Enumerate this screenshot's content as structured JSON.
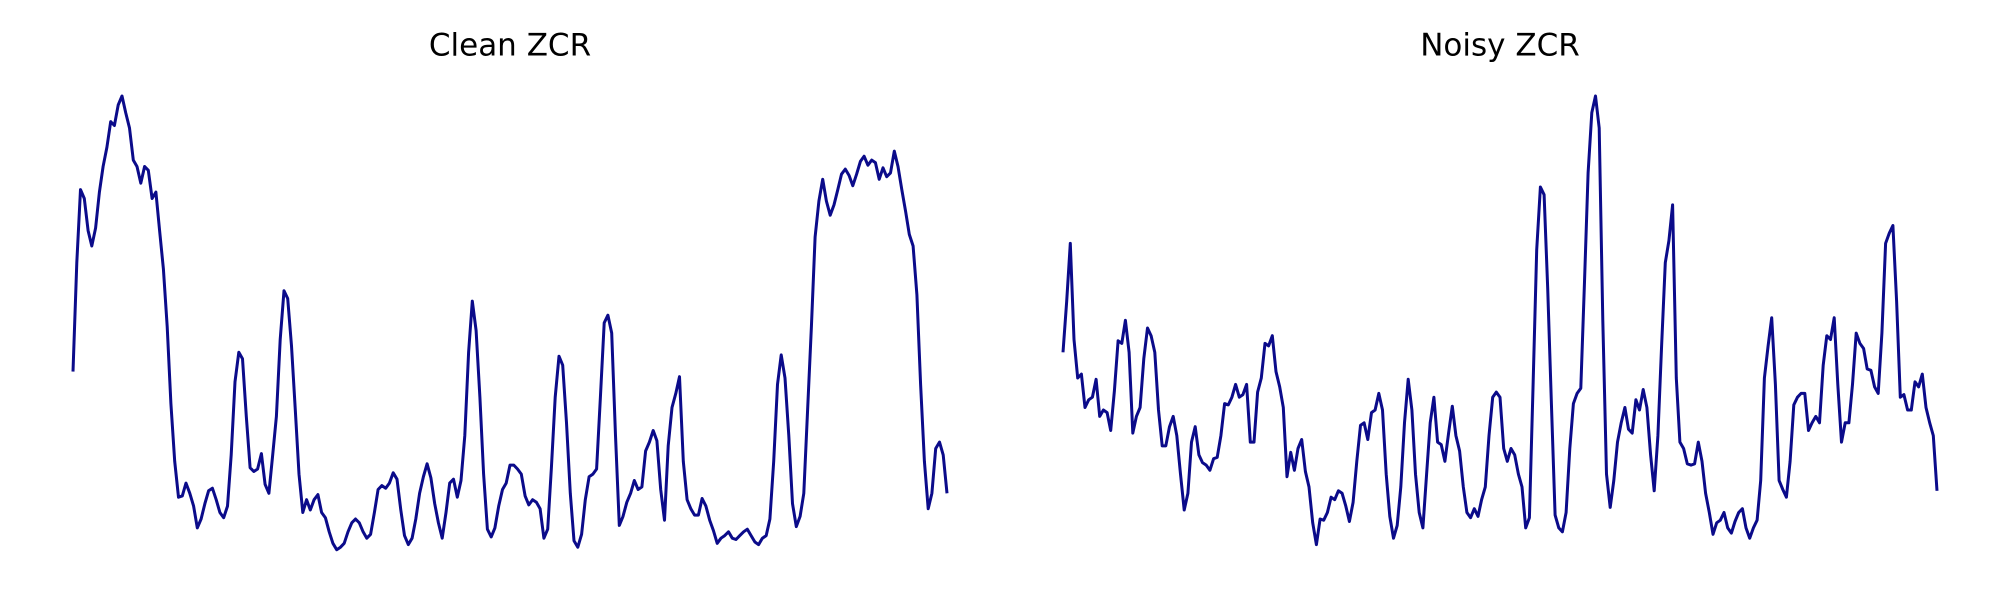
{
  "chart_data": [
    {
      "type": "line",
      "title": "Clean ZCR",
      "color": "#0b0b8a",
      "ylim": [
        0,
        355
      ],
      "values": [
        140,
        225,
        282,
        275,
        250,
        238,
        252,
        280,
        300,
        315,
        335,
        332,
        348,
        355,
        342,
        330,
        305,
        300,
        287,
        300,
        297,
        275,
        280,
        250,
        220,
        175,
        115,
        70,
        42,
        43,
        53,
        45,
        35,
        18,
        25,
        37,
        47,
        49,
        40,
        30,
        26,
        35,
        75,
        132,
        155,
        150,
        105,
        65,
        62,
        64,
        76,
        52,
        45,
        75,
        105,
        165,
        203,
        197,
        160,
        110,
        60,
        30,
        40,
        32,
        40,
        44,
        30,
        26,
        15,
        6,
        1,
        3,
        6,
        15,
        22,
        25,
        22,
        15,
        10,
        13,
        30,
        48,
        51,
        49,
        53,
        61,
        56,
        32,
        12,
        5,
        10,
        25,
        45,
        58,
        68,
        57,
        37,
        22,
        10,
        30,
        53,
        56,
        42,
        55,
        90,
        155,
        195,
        172,
        120,
        60,
        17,
        11,
        18,
        35,
        48,
        53,
        67,
        67,
        64,
        60,
        43,
        36,
        40,
        38,
        33,
        10,
        17,
        65,
        120,
        152,
        145,
        100,
        45,
        8,
        3,
        13,
        40,
        58,
        60,
        64,
        120,
        178,
        184,
        170,
        90,
        20,
        27,
        38,
        45,
        55,
        48,
        50,
        78,
        85,
        94,
        86,
        48,
        24,
        82,
        112,
        123,
        136,
        70,
        40,
        33,
        28,
        28,
        41,
        35,
        24,
        16,
        6,
        10,
        12,
        15,
        10,
        9,
        12,
        15,
        17,
        12,
        7,
        5,
        10,
        12,
        25,
        70,
        130,
        153,
        135,
        90,
        37,
        19,
        27,
        45,
        110,
        175,
        245,
        273,
        290,
        273,
        262,
        270,
        282,
        294,
        298,
        293,
        285,
        294,
        304,
        308,
        301,
        305,
        303,
        290,
        299,
        292,
        295,
        312,
        300,
        282,
        265,
        247,
        238,
        200,
        130,
        70,
        33,
        45,
        80,
        85,
        75,
        45
      ]
    },
    {
      "type": "line",
      "title": "Noisy ZCR",
      "color": "#0b0b8a",
      "ylim": [
        0,
        355
      ],
      "values": [
        155,
        195,
        240,
        165,
        135,
        138,
        112,
        118,
        120,
        134,
        105,
        110,
        108,
        94,
        125,
        164,
        162,
        180,
        155,
        92,
        105,
        112,
        150,
        174,
        168,
        155,
        110,
        82,
        82,
        97,
        105,
        90,
        60,
        32,
        45,
        85,
        97,
        75,
        69,
        67,
        63,
        72,
        73,
        90,
        115,
        114,
        120,
        130,
        120,
        122,
        130,
        85,
        85,
        124,
        135,
        162,
        160,
        168,
        140,
        128,
        112,
        58,
        77,
        63,
        80,
        87,
        62,
        50,
        22,
        5,
        25,
        24,
        30,
        42,
        40,
        47,
        45,
        35,
        23,
        38,
        70,
        98,
        100,
        87,
        108,
        110,
        123,
        110,
        60,
        27,
        10,
        20,
        50,
        100,
        134,
        110,
        60,
        30,
        18,
        60,
        100,
        120,
        85,
        83,
        70,
        92,
        113,
        90,
        78,
        50,
        30,
        26,
        33,
        27,
        40,
        50,
        90,
        120,
        124,
        120,
        80,
        70,
        80,
        75,
        60,
        50,
        18,
        26,
        130,
        235,
        284,
        278,
        205,
        115,
        28,
        18,
        15,
        30,
        80,
        115,
        123,
        127,
        210,
        295,
        342,
        355,
        330,
        180,
        60,
        34,
        55,
        85,
        100,
        112,
        95,
        92,
        118,
        110,
        126,
        112,
        75,
        47,
        90,
        160,
        225,
        242,
        270,
        135,
        85,
        80,
        68,
        67,
        68,
        85,
        70,
        45,
        30,
        13,
        22,
        24,
        30,
        18,
        14,
        23,
        30,
        33,
        18,
        10,
        18,
        24,
        55,
        135,
        160,
        182,
        130,
        55,
        48,
        42,
        70,
        114,
        120,
        123,
        123,
        94,
        100,
        105,
        100,
        145,
        168,
        165,
        182,
        130,
        85,
        100,
        100,
        130,
        170,
        162,
        158,
        142,
        141,
        128,
        123,
        170,
        240,
        248,
        254,
        195,
        120,
        122,
        110,
        110,
        132,
        128,
        138,
        112,
        100,
        90,
        47
      ]
    }
  ]
}
